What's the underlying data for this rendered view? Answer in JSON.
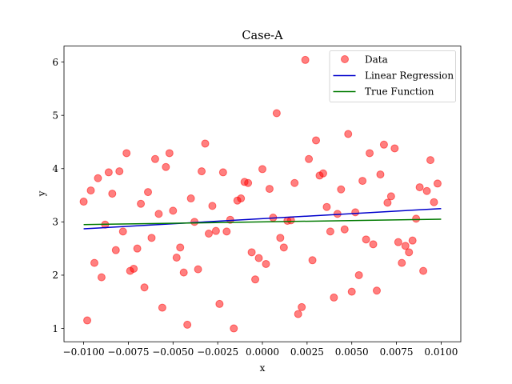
{
  "chart_data": {
    "type": "scatter",
    "title": "Case-A",
    "xlabel": "x",
    "ylabel": "y",
    "xlim": [
      -0.0111,
      0.0111
    ],
    "ylim": [
      0.75,
      6.3
    ],
    "x_ticks": [
      -0.01,
      -0.0075,
      -0.005,
      -0.0025,
      0.0,
      0.0025,
      0.005,
      0.0075,
      0.01
    ],
    "x_tick_labels": [
      "−0.0100",
      "−0.0075",
      "−0.0050",
      "−0.0025",
      "0.0000",
      "0.0025",
      "0.0050",
      "0.0075",
      "0.0100"
    ],
    "y_ticks": [
      1,
      2,
      3,
      4,
      5,
      6
    ],
    "y_tick_labels": [
      "1",
      "2",
      "3",
      "4",
      "5",
      "6"
    ],
    "grid": false,
    "legend": {
      "placement": "top-right",
      "entries": [
        "Data",
        "Linear Regression",
        "True Function"
      ]
    },
    "colors": {
      "data": "#ff0000",
      "regression": "#0000cc",
      "true_function": "#007a00"
    },
    "series": [
      {
        "name": "Data",
        "kind": "scatter",
        "points": [
          [
            -0.01,
            3.38
          ],
          [
            -0.0098,
            1.15
          ],
          [
            -0.0096,
            3.59
          ],
          [
            -0.0094,
            2.23
          ],
          [
            -0.0092,
            3.82
          ],
          [
            -0.009,
            1.96
          ],
          [
            -0.0088,
            2.95
          ],
          [
            -0.0086,
            3.93
          ],
          [
            -0.0084,
            3.53
          ],
          [
            -0.0082,
            2.47
          ],
          [
            -0.008,
            3.95
          ],
          [
            -0.0078,
            2.82
          ],
          [
            -0.0076,
            4.29
          ],
          [
            -0.0074,
            2.08
          ],
          [
            -0.0072,
            2.12
          ],
          [
            -0.007,
            2.5
          ],
          [
            -0.0068,
            3.34
          ],
          [
            -0.0066,
            1.77
          ],
          [
            -0.0064,
            3.56
          ],
          [
            -0.0062,
            2.7
          ],
          [
            -0.006,
            4.18
          ],
          [
            -0.0058,
            3.15
          ],
          [
            -0.0056,
            1.39
          ],
          [
            -0.0054,
            4.03
          ],
          [
            -0.0052,
            4.29
          ],
          [
            -0.005,
            3.21
          ],
          [
            -0.0048,
            2.33
          ],
          [
            -0.0046,
            2.52
          ],
          [
            -0.0044,
            2.05
          ],
          [
            -0.0042,
            1.07
          ],
          [
            -0.004,
            3.44
          ],
          [
            -0.0038,
            3.0
          ],
          [
            -0.0036,
            2.11
          ],
          [
            -0.0034,
            3.95
          ],
          [
            -0.0032,
            4.47
          ],
          [
            -0.003,
            2.78
          ],
          [
            -0.0028,
            3.3
          ],
          [
            -0.0026,
            2.83
          ],
          [
            -0.0024,
            1.46
          ],
          [
            -0.0022,
            3.93
          ],
          [
            -0.002,
            2.82
          ],
          [
            -0.0018,
            3.04
          ],
          [
            -0.0016,
            1.0
          ],
          [
            -0.0014,
            3.4
          ],
          [
            -0.0012,
            3.44
          ],
          [
            -0.001,
            3.75
          ],
          [
            -0.0008,
            3.73
          ],
          [
            -0.0006,
            2.43
          ],
          [
            -0.0004,
            1.92
          ],
          [
            -0.0002,
            2.32
          ],
          [
            0.0,
            3.99
          ],
          [
            0.0002,
            2.21
          ],
          [
            0.0004,
            3.62
          ],
          [
            0.0006,
            3.08
          ],
          [
            0.0008,
            5.04
          ],
          [
            0.001,
            2.7
          ],
          [
            0.0012,
            2.52
          ],
          [
            0.0014,
            3.02
          ],
          [
            0.0016,
            3.03
          ],
          [
            0.0018,
            3.73
          ],
          [
            0.002,
            1.27
          ],
          [
            0.0022,
            1.4
          ],
          [
            0.0024,
            6.04
          ],
          [
            0.0026,
            4.18
          ],
          [
            0.0028,
            2.28
          ],
          [
            0.003,
            4.53
          ],
          [
            0.0032,
            3.87
          ],
          [
            0.0034,
            3.91
          ],
          [
            0.0036,
            3.28
          ],
          [
            0.0038,
            2.82
          ],
          [
            0.004,
            1.58
          ],
          [
            0.0042,
            3.15
          ],
          [
            0.0044,
            3.61
          ],
          [
            0.0046,
            2.86
          ],
          [
            0.0048,
            4.65
          ],
          [
            0.005,
            1.69
          ],
          [
            0.0052,
            3.18
          ],
          [
            0.0054,
            2.0
          ],
          [
            0.0056,
            3.77
          ],
          [
            0.0058,
            2.67
          ],
          [
            0.006,
            4.29
          ],
          [
            0.0062,
            2.58
          ],
          [
            0.0064,
            1.71
          ],
          [
            0.0066,
            3.89
          ],
          [
            0.0068,
            4.45
          ],
          [
            0.007,
            3.36
          ],
          [
            0.0072,
            3.48
          ],
          [
            0.0074,
            4.38
          ],
          [
            0.0076,
            2.62
          ],
          [
            0.0078,
            2.23
          ],
          [
            0.008,
            2.55
          ],
          [
            0.0082,
            2.43
          ],
          [
            0.0084,
            2.65
          ],
          [
            0.0086,
            3.06
          ],
          [
            0.0088,
            3.65
          ],
          [
            0.009,
            2.08
          ],
          [
            0.0092,
            3.58
          ],
          [
            0.0094,
            4.16
          ],
          [
            0.0096,
            3.37
          ],
          [
            0.0098,
            3.72
          ]
        ]
      },
      {
        "name": "Linear Regression",
        "kind": "line",
        "points": [
          [
            -0.01,
            2.87
          ],
          [
            0.01,
            3.25
          ]
        ]
      },
      {
        "name": "True Function",
        "kind": "line",
        "points": [
          [
            -0.01,
            2.95
          ],
          [
            0.01,
            3.05
          ]
        ]
      }
    ]
  }
}
